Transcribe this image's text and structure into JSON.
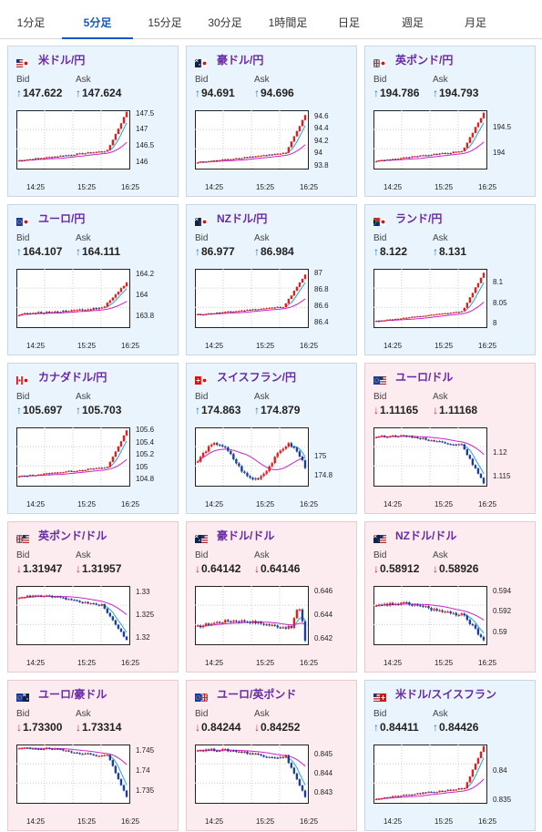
{
  "tabs": [
    "1分足",
    "5分足",
    "15分足",
    "30分足",
    "1時間足",
    "日足",
    "週足",
    "月足"
  ],
  "active_tab": "5分足",
  "labels": {
    "bid": "Bid",
    "ask": "Ask"
  },
  "colors": {
    "up_card_bg": "#eaf4fc",
    "down_card_bg": "#fcecef",
    "title": "#6a2aa8",
    "up_arrow": "#1e78c8",
    "down_arrow": "#d02828",
    "bull_candle": "#e02020",
    "bear_candle": "#1a3fa0",
    "ma_long": "#cc22cc",
    "ma_short": "#2a9fd8"
  },
  "cards": [
    {
      "title": "米ドル/円",
      "flag": "us-jp",
      "dir": "up",
      "arrow": "↑",
      "bid": "147.622",
      "ask": "147.624",
      "ylim": [
        145.8,
        147.6
      ],
      "yticks": [
        "147.5",
        "147",
        "146.5",
        "146"
      ],
      "xticks": [
        "14:25",
        "15:25",
        "16:25"
      ],
      "start": 146.05,
      "end": 147.55,
      "amp": 0.05,
      "vol": 0.06,
      "surge": 0.82,
      "shape": "rise"
    },
    {
      "title": "豪ドル/円",
      "flag": "au-jp",
      "dir": "up",
      "arrow": "↑",
      "bid": "94.691",
      "ask": "94.696",
      "ylim": [
        93.75,
        94.7
      ],
      "yticks": [
        "94.6",
        "94.4",
        "94.2",
        "94",
        "93.8"
      ],
      "xticks": [
        "14:25",
        "15:25",
        "16:25"
      ],
      "start": 93.85,
      "end": 94.62,
      "amp": 0.05,
      "vol": 0.03,
      "surge": 0.82,
      "shape": "rise"
    },
    {
      "title": "英ポンド/円",
      "flag": "gb-jp",
      "dir": "up",
      "arrow": "↑",
      "bid": "194.786",
      "ask": "194.793",
      "ylim": [
        193.7,
        194.85
      ],
      "yticks": [
        "194.5",
        "194"
      ],
      "xticks": [
        "14:25",
        "15:25",
        "16:25"
      ],
      "start": 193.85,
      "end": 194.8,
      "amp": 0.06,
      "vol": 0.04,
      "surge": 0.8,
      "shape": "rise"
    },
    {
      "title": "ユーロ/円",
      "flag": "eu-jp",
      "dir": "up",
      "arrow": "↑",
      "bid": "164.107",
      "ask": "164.111",
      "ylim": [
        163.7,
        164.25
      ],
      "yticks": [
        "164.2",
        "164",
        "163.8"
      ],
      "xticks": [
        "14:25",
        "15:25",
        "16:25"
      ],
      "start": 163.82,
      "end": 164.12,
      "amp": 0.05,
      "vol": 0.03,
      "surge": 0.78,
      "shape": "rise"
    },
    {
      "title": "NZドル/円",
      "flag": "nz-jp",
      "dir": "up",
      "arrow": "↑",
      "bid": "86.977",
      "ask": "86.984",
      "ylim": [
        86.35,
        87.05
      ],
      "yticks": [
        "87",
        "86.8",
        "86.6",
        "86.4"
      ],
      "xticks": [
        "14:25",
        "15:25",
        "16:25"
      ],
      "start": 86.5,
      "end": 86.98,
      "amp": 0.04,
      "vol": 0.02,
      "surge": 0.8,
      "shape": "rise"
    },
    {
      "title": "ランド/円",
      "flag": "za-jp",
      "dir": "up",
      "arrow": "↑",
      "bid": "8.122",
      "ask": "8.131",
      "ylim": [
        7.99,
        8.135
      ],
      "yticks": [
        "8.1",
        "8.05",
        "8"
      ],
      "xticks": [
        "14:25",
        "15:25",
        "16:25"
      ],
      "start": 8.005,
      "end": 8.125,
      "amp": 0.004,
      "vol": 0.003,
      "surge": 0.8,
      "shape": "rise"
    },
    {
      "title": "カナダドル/円",
      "flag": "ca-jp",
      "dir": "up",
      "arrow": "↑",
      "bid": "105.697",
      "ask": "105.703",
      "ylim": [
        104.7,
        105.65
      ],
      "yticks": [
        "105.6",
        "105.4",
        "105.2",
        "105",
        "104.8"
      ],
      "xticks": [
        "14:25",
        "15:25",
        "16:25"
      ],
      "start": 104.85,
      "end": 105.6,
      "amp": 0.03,
      "vol": 0.03,
      "surge": 0.82,
      "shape": "rise"
    },
    {
      "title": "スイスフラン/円",
      "flag": "ch-jp",
      "dir": "up",
      "arrow": "↑",
      "bid": "174.863",
      "ask": "174.879",
      "ylim": [
        174.7,
        175.3
      ],
      "yticks": [
        "175",
        "174.8"
      ],
      "xticks": [
        "14:25",
        "15:25",
        "16:25"
      ],
      "start": 174.95,
      "end": 174.82,
      "amp": 0.1,
      "vol": 0.05,
      "surge": 0.85,
      "shape": "wave"
    },
    {
      "title": "ユーロ/ドル",
      "flag": "eu-us",
      "dir": "down",
      "arrow": "↓",
      "bid": "1.11165",
      "ask": "1.11168",
      "ylim": [
        1.113,
        1.1255
      ],
      "yticks": [
        "1.12",
        "1.115"
      ],
      "xticks": [
        "14:25",
        "15:25",
        "16:25"
      ],
      "start": 1.1235,
      "end": 1.1135,
      "amp": 0.0005,
      "vol": 0.0006,
      "surge": 0.78,
      "shape": "fall"
    },
    {
      "title": "英ポンド/ドル",
      "flag": "gb-us",
      "dir": "down",
      "arrow": "↓",
      "bid": "1.31947",
      "ask": "1.31957",
      "ylim": [
        1.3185,
        1.3315
      ],
      "yticks": [
        "1.33",
        "1.325",
        "1.32"
      ],
      "xticks": [
        "14:25",
        "15:25",
        "16:25"
      ],
      "start": 1.329,
      "end": 1.3195,
      "amp": 0.0006,
      "vol": 0.0007,
      "surge": 0.75,
      "shape": "fall"
    },
    {
      "title": "豪ドル/ドル",
      "flag": "au-us",
      "dir": "down",
      "arrow": "↓",
      "bid": "0.64142",
      "ask": "0.64146",
      "ylim": [
        0.6415,
        0.6465
      ],
      "yticks": [
        "0.646",
        "0.644",
        "0.642"
      ],
      "xticks": [
        "14:25",
        "15:25",
        "16:25"
      ],
      "start": 0.643,
      "end": 0.6418,
      "amp": 0.0004,
      "vol": 0.0004,
      "surge": 0.88,
      "shape": "humpfall"
    },
    {
      "title": "NZドル/ドル",
      "flag": "nz-us",
      "dir": "down",
      "arrow": "↓",
      "bid": "0.58912",
      "ask": "0.58926",
      "ylim": [
        0.5888,
        0.5945
      ],
      "yticks": [
        "0.594",
        "0.592",
        "0.59"
      ],
      "xticks": [
        "14:25",
        "15:25",
        "16:25"
      ],
      "start": 0.5925,
      "end": 0.5892,
      "amp": 0.0004,
      "vol": 0.0005,
      "surge": 0.78,
      "shape": "fall"
    },
    {
      "title": "ユーロ/豪ドル",
      "flag": "eu-au",
      "dir": "down",
      "arrow": "↓",
      "bid": "1.73300",
      "ask": "1.73314",
      "ylim": [
        1.732,
        1.7465
      ],
      "yticks": [
        "1.745",
        "1.74",
        "1.735"
      ],
      "xticks": [
        "14:25",
        "15:25",
        "16:25"
      ],
      "start": 1.7455,
      "end": 1.7335,
      "amp": 0.0004,
      "vol": 0.0008,
      "surge": 0.82,
      "shape": "fall"
    },
    {
      "title": "ユーロ/英ポンド",
      "flag": "eu-gb",
      "dir": "down",
      "arrow": "↓",
      "bid": "0.84244",
      "ask": "0.84252",
      "ylim": [
        0.8425,
        0.8455
      ],
      "yticks": [
        "0.845",
        "0.844",
        "0.843"
      ],
      "xticks": [
        "14:25",
        "15:25",
        "16:25"
      ],
      "start": 0.8452,
      "end": 0.8428,
      "amp": 0.0001,
      "vol": 0.0002,
      "surge": 0.82,
      "shape": "fall"
    },
    {
      "title": "米ドル/スイスフラン",
      "flag": "us-ch",
      "dir": "up",
      "arrow": "↑",
      "bid": "0.84411",
      "ask": "0.84426",
      "ylim": [
        0.8345,
        0.8445
      ],
      "yticks": [
        "0.84",
        "0.835"
      ],
      "xticks": [
        "14:25",
        "15:25",
        "16:25"
      ],
      "start": 0.8352,
      "end": 0.8442,
      "amp": 0.0003,
      "vol": 0.0004,
      "surge": 0.82,
      "shape": "rise"
    }
  ]
}
